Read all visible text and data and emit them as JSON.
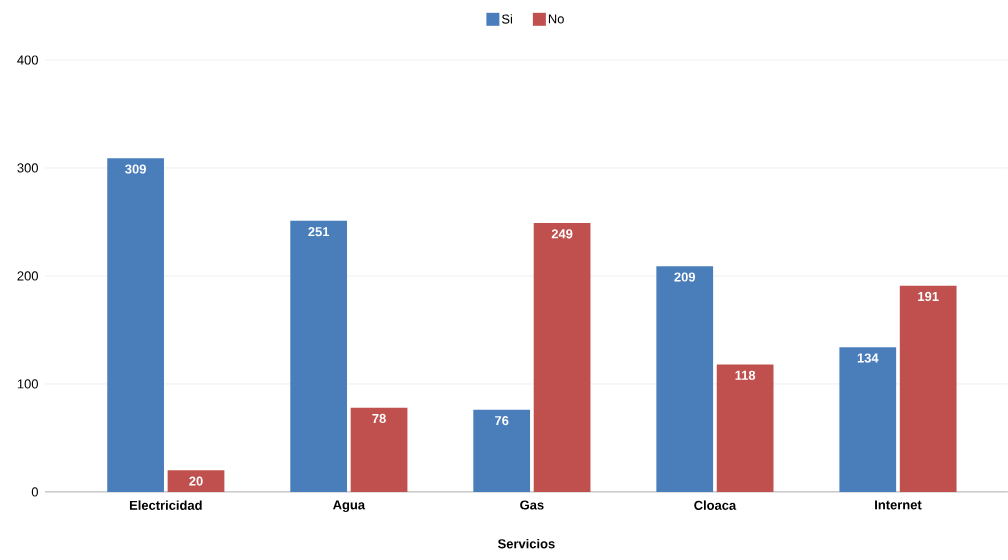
{
  "chart_data": {
    "type": "bar",
    "xlabel": "Servicios",
    "categories": [
      "Electricidad",
      "Agua",
      "Gas",
      "Cloaca",
      "Internet"
    ],
    "series": [
      {
        "name": "Si",
        "color": "#4a7ebb",
        "values": [
          309,
          251,
          76,
          209,
          134
        ]
      },
      {
        "name": "No",
        "color": "#c0504d",
        "values": [
          20,
          78,
          249,
          118,
          191
        ]
      }
    ],
    "ylim": [
      0,
      400
    ],
    "yticks": [
      0,
      100,
      200,
      300,
      400
    ],
    "grid": "y",
    "legend": "top",
    "data_labels": true
  }
}
